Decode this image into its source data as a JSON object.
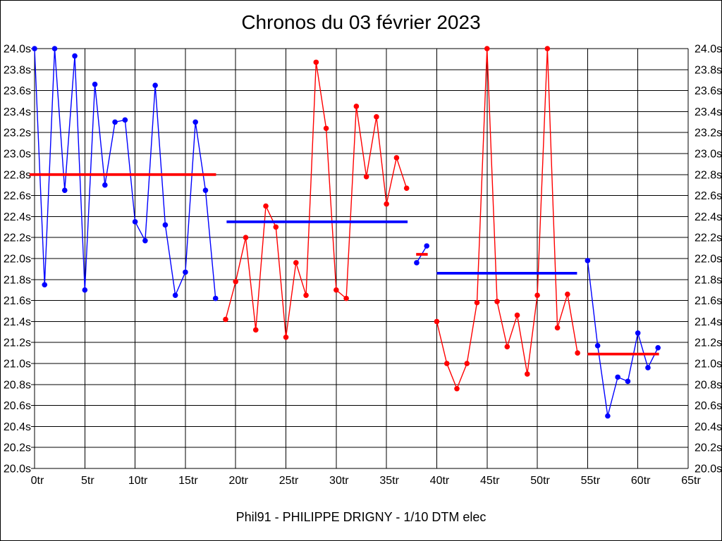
{
  "window": {
    "background": "#ffffff",
    "border_color": "#000000"
  },
  "chart_data": {
    "type": "line",
    "title": "Chronos du 03 février 2023",
    "footer": "Phil91 - PHILIPPE DRIGNY - 1/10 DTM elec",
    "x_unit": "tr",
    "y_unit": "s",
    "xlim": [
      0,
      65
    ],
    "ylim": [
      20.0,
      24.0
    ],
    "x_tick_step": 5,
    "y_tick_step": 0.2,
    "grid": true,
    "y_labels_both_sides": true,
    "legend": "none",
    "colors": {
      "blue": "#0000ff",
      "red": "#ff0000",
      "grid": "#000000",
      "text": "#000000"
    },
    "series": [
      {
        "name": "stint-1",
        "color": "blue",
        "start_lap": 0,
        "values": [
          24.0,
          21.75,
          24.0,
          22.65,
          23.93,
          21.7,
          23.66,
          22.7,
          23.3,
          23.32,
          22.35,
          22.17,
          23.65,
          22.32,
          21.65,
          21.87,
          23.3,
          22.65,
          21.62
        ]
      },
      {
        "name": "stint-2",
        "color": "red",
        "start_lap": 19,
        "values": [
          21.42,
          21.78,
          22.2,
          21.32,
          22.5,
          22.3,
          21.25,
          21.96,
          21.65,
          23.87,
          23.24,
          21.7,
          21.62,
          23.45,
          22.78,
          23.35,
          22.52,
          22.96,
          22.67
        ]
      },
      {
        "name": "stint-3",
        "color": "blue",
        "start_lap": 38,
        "values": [
          21.96,
          22.12
        ]
      },
      {
        "name": "stint-4",
        "color": "red",
        "start_lap": 40,
        "values": [
          21.4,
          21.0,
          20.76,
          21.0,
          21.58,
          24.0,
          21.59,
          21.16,
          21.46,
          20.9,
          21.65,
          24.0,
          21.34,
          21.66,
          21.1
        ]
      },
      {
        "name": "stint-5",
        "color": "blue",
        "start_lap": 55,
        "values": [
          21.98,
          21.17,
          20.5,
          20.87,
          20.83,
          21.29,
          20.96,
          21.15
        ]
      }
    ],
    "average_lines": [
      {
        "color": "red",
        "value": 22.8,
        "from_lap": -0.5,
        "to_lap": 18.05
      },
      {
        "color": "blue",
        "value": 22.35,
        "from_lap": 19.1,
        "to_lap": 37.1
      },
      {
        "color": "red",
        "value": 22.04,
        "from_lap": 37.95,
        "to_lap": 39.1
      },
      {
        "color": "blue",
        "value": 21.86,
        "from_lap": 40.0,
        "to_lap": 53.95
      },
      {
        "color": "red",
        "value": 21.09,
        "from_lap": 55.0,
        "to_lap": 62.1
      }
    ]
  }
}
